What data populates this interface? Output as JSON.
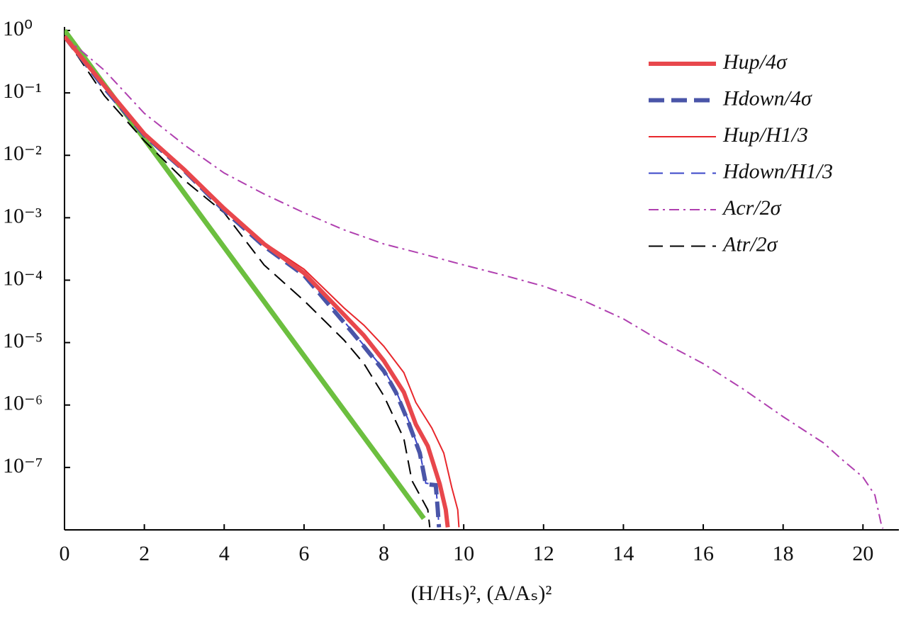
{
  "chart_data": {
    "type": "line",
    "xlabel": "(H/Hₛ)², (A/Aₛ)²",
    "xlim": [
      0,
      20.9
    ],
    "xticks": [
      0,
      2,
      4,
      6,
      8,
      10,
      12,
      14,
      16,
      18,
      20
    ],
    "ylim": [
      1e-08,
      1
    ],
    "log_y": true,
    "yticks": [
      {
        "value": 1,
        "label": "10⁰"
      },
      {
        "value": 0.1,
        "label": "10⁻¹"
      },
      {
        "value": 0.01,
        "label": "10⁻²"
      },
      {
        "value": 0.001,
        "label": "10⁻³"
      },
      {
        "value": 0.0001,
        "label": "10⁻⁴"
      },
      {
        "value": 1e-05,
        "label": "10⁻⁵"
      },
      {
        "value": 1e-06,
        "label": "10⁻⁶"
      },
      {
        "value": 1e-07,
        "label": "10⁻⁷"
      }
    ],
    "legend": "upper right",
    "series": [
      {
        "name": "Hup/4σ",
        "color": "#e8474c",
        "style": "solid",
        "linewidth": 6,
        "x": [
          0,
          1,
          2,
          3,
          4,
          5,
          6,
          7,
          7.5,
          8,
          8.5,
          8.8,
          9.1,
          9.4,
          9.55,
          9.6
        ],
        "values": [
          0.8,
          0.13,
          0.022,
          0.0059,
          0.0014,
          0.00038,
          0.00013,
          2.8e-05,
          1.3e-05,
          5.1e-06,
          1.6e-06,
          4.9e-07,
          2.2e-07,
          5.4e-08,
          2.1e-08,
          1.1e-08
        ]
      },
      {
        "name": "Hdown/4σ",
        "color": "#4a55a8",
        "style": "dashed",
        "linewidth": 6,
        "x": [
          0,
          1,
          2,
          3,
          4,
          5,
          6,
          7,
          7.5,
          8,
          8.3,
          8.6,
          8.9,
          9.05,
          9.3,
          9.35,
          9.38
        ],
        "values": [
          0.8,
          0.12,
          0.021,
          0.0057,
          0.0013,
          0.00035,
          0.00012,
          2.1e-05,
          8.7e-06,
          3.5e-06,
          1.6e-06,
          5.6e-07,
          1.7e-07,
          5.4e-08,
          5.2e-08,
          2.1e-08,
          1.1e-08
        ]
      },
      {
        "name": "Hup/H1/3",
        "color": "#e8272c",
        "style": "solid",
        "linewidth": 2,
        "x": [
          0,
          1,
          2,
          3,
          4,
          5,
          6,
          7,
          7.5,
          8,
          8.5,
          8.8,
          9.2,
          9.5,
          9.7,
          9.85,
          9.88
        ],
        "values": [
          0.8,
          0.13,
          0.023,
          0.0062,
          0.0015,
          0.0004,
          0.00015,
          3.6e-05,
          1.9e-05,
          8.7e-06,
          3.3e-06,
          1.1e-06,
          4.3e-07,
          1.7e-07,
          4.8e-08,
          2.1e-08,
          1.1e-08
        ]
      },
      {
        "name": "Hdown/H1/3",
        "color": "#3a45c8",
        "style": "dashed",
        "linewidth": 2,
        "x": [
          0,
          1,
          2,
          3,
          4,
          5,
          6,
          7,
          7.5,
          8,
          8.3,
          8.6,
          8.9,
          9.05,
          9.3,
          9.35,
          9.38
        ],
        "values": [
          0.8,
          0.12,
          0.021,
          0.0058,
          0.00135,
          0.00036,
          0.000125,
          2.2e-05,
          9e-06,
          3.7e-06,
          1.7e-06,
          6e-07,
          1.8e-07,
          5.6e-08,
          5.3e-08,
          2.2e-08,
          1.1e-08
        ]
      },
      {
        "name": "Acr/2σ",
        "color": "#b040b0",
        "style": "dashdot",
        "linewidth": 2,
        "x": [
          0,
          1,
          2,
          3,
          4,
          5,
          6,
          7,
          8,
          9,
          10,
          11,
          12,
          13,
          14,
          15,
          16,
          17,
          18,
          19,
          19.5,
          20,
          20.3,
          20.45,
          20.5
        ],
        "values": [
          0.8,
          0.23,
          0.047,
          0.0147,
          0.0052,
          0.0024,
          0.0012,
          0.00064,
          0.00038,
          0.00026,
          0.000175,
          0.00012,
          8e-05,
          4.7e-05,
          2.4e-05,
          1e-05,
          4.6e-06,
          1.8e-06,
          6.5e-07,
          2.5e-07,
          1.3e-07,
          7e-08,
          3.6e-08,
          1.3e-08,
          1.05e-08
        ]
      },
      {
        "name": "Atr/2σ",
        "color": "#000000",
        "style": "dashed",
        "linewidth": 2,
        "x": [
          0,
          1,
          2,
          3,
          4,
          5,
          6,
          7,
          7.5,
          8,
          8.5,
          8.7,
          9.1,
          9.15
        ],
        "values": [
          0.8,
          0.09,
          0.017,
          0.004,
          0.0012,
          0.000175,
          4.7e-05,
          1.1e-05,
          4.6e-06,
          1.4e-06,
          2.9e-07,
          6.2e-08,
          2.1e-08,
          1.1e-08
        ]
      },
      {
        "color": "#6cbf3f",
        "style": "solid",
        "linewidth": 7,
        "x": [
          0,
          1,
          2,
          3,
          4,
          5,
          6,
          7,
          8,
          9
        ],
        "values": [
          1,
          0.135,
          0.0183,
          0.00248,
          0.000335,
          4.54e-05,
          6.14e-06,
          8.3e-07,
          1.13e-07,
          1.52e-08
        ]
      }
    ]
  }
}
